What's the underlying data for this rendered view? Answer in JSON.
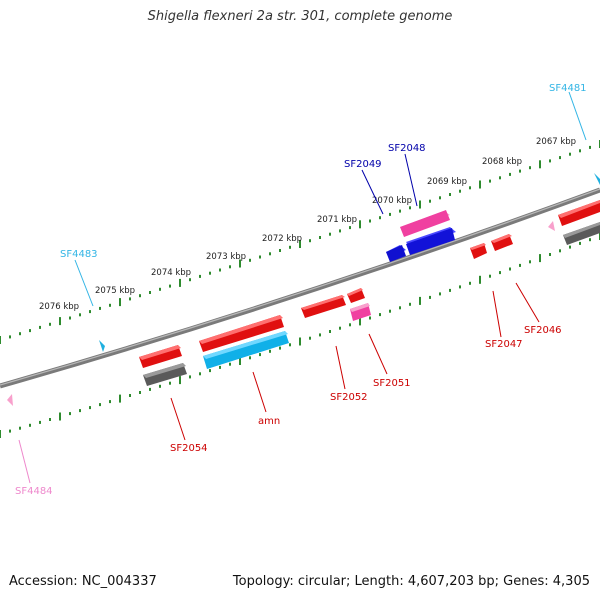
{
  "title": "Shigella flexneri 2a str. 301, complete genome",
  "footer": {
    "accession": "Accession: NC_004337",
    "summary": "Topology: circular; Length: 4,607,203 bp; Genes: 4,305"
  },
  "colors": {
    "backbone": "#808080",
    "tick": "#2e8b2e",
    "red": "#e01010",
    "pink": "#f040a0",
    "blue": "#1010d0",
    "cyan": "#20b0e0",
    "gray": "#606060",
    "label_red": "#cc0000",
    "label_blue": "#0000aa",
    "label_cyan": "#33b5e5",
    "label_pink": "#ee88cc"
  },
  "kbp_ticks": [
    "2067 kbp",
    "2068 kbp",
    "2069 kbp",
    "2070 kbp",
    "2071 kbp",
    "2072 kbp",
    "2073 kbp",
    "2074 kbp",
    "2075 kbp",
    "2076 kbp"
  ],
  "gene_labels": [
    "SF4481",
    "SF2048",
    "SF2049",
    "SF4483",
    "SF2046",
    "SF2047",
    "SF2051",
    "SF2052",
    "amn",
    "SF2054",
    "SF4484"
  ]
}
